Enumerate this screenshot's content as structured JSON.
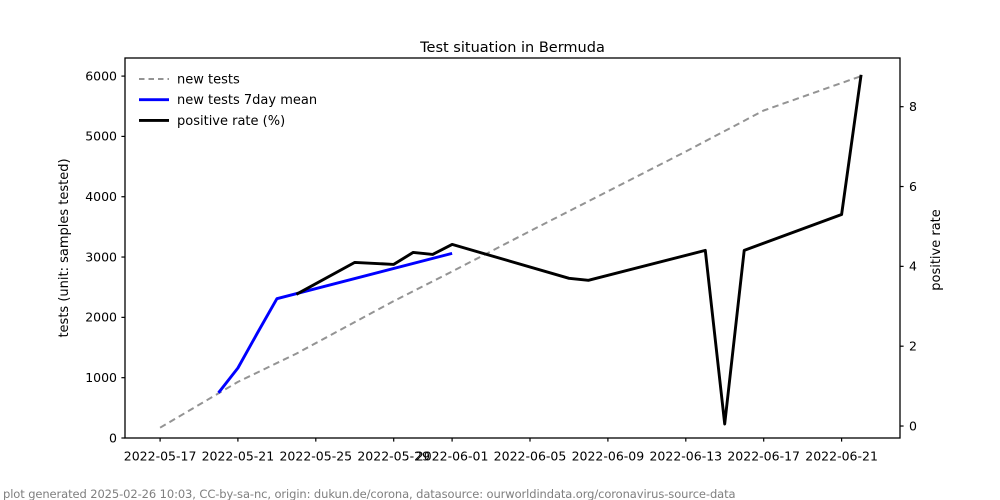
{
  "title": "Test situation in Bermuda",
  "footer": "plot generated 2025-02-26 10:03, CC-by-sa-nc, origin: dukun.de/corona, datasource: ourworldindata.org/coronavirus-source-data",
  "axes": {
    "x": {
      "start_date": "2022-05-17",
      "min_days": -1.8,
      "max_days": 38.0,
      "tick_dates": [
        "2022-05-17",
        "2022-05-21",
        "2022-05-25",
        "2022-05-29",
        "2022-06-01",
        "2022-06-05",
        "2022-06-09",
        "2022-06-13",
        "2022-06-17",
        "2022-06-21"
      ],
      "tick_labels": [
        "2022-05-17",
        "2022-05-21",
        "2022-05-25",
        "2022-05-29",
        "2022-06-01",
        "2022-06-05",
        "2022-06-09",
        "2022-06-13",
        "2022-06-17",
        "2022-06-21"
      ]
    },
    "y_left": {
      "label": "tests (unit: samples tested)",
      "min": 0,
      "max": 6300,
      "ticks": [
        0,
        1000,
        2000,
        3000,
        4000,
        5000,
        6000
      ]
    },
    "y_right": {
      "label": "positive rate",
      "min": -0.3,
      "max": 9.22,
      "ticks": [
        0,
        2,
        4,
        6,
        8
      ]
    }
  },
  "legend": {
    "position": "upper-left",
    "frame": false
  },
  "colors": {
    "gray_series": "#949494",
    "blue_series": "#0000ff",
    "black_series": "#000000",
    "spine": "#000000",
    "footer_text": "#7f7f7f"
  },
  "chart_data": {
    "type": "line",
    "title": "Test situation in Bermuda",
    "xlabel": "",
    "ylabel_left": "tests (unit: samples tested)",
    "ylabel_right": "positive rate",
    "x_range": [
      "2022-05-17",
      "2022-06-22"
    ],
    "ylim_left": [
      0,
      6300
    ],
    "ylim_right": [
      -0.3,
      9.22
    ],
    "grid": false,
    "series": [
      {
        "name": "new tests",
        "axis": "left",
        "style": "dashed",
        "color": "#949494",
        "width": 2,
        "points": [
          [
            "2022-05-17",
            170
          ],
          [
            "2022-05-21",
            930
          ],
          [
            "2022-05-24",
            1400
          ],
          [
            "2022-05-29",
            2270
          ],
          [
            "2022-06-01",
            2760
          ],
          [
            "2022-06-05",
            3430
          ],
          [
            "2022-06-09",
            4090
          ],
          [
            "2022-06-13",
            4750
          ],
          [
            "2022-06-17",
            5430
          ],
          [
            "2022-06-22",
            6000
          ]
        ]
      },
      {
        "name": "new tests 7day mean",
        "axis": "left",
        "style": "solid",
        "color": "#0000ff",
        "width": 2.9,
        "points": [
          [
            "2022-05-20",
            750
          ],
          [
            "2022-05-21",
            1160
          ],
          [
            "2022-05-22",
            1740
          ],
          [
            "2022-05-23",
            2310
          ],
          [
            "2022-06-01",
            3060
          ]
        ]
      },
      {
        "name": "positive rate (%)",
        "axis": "right",
        "style": "solid",
        "color": "#000000",
        "width": 2.9,
        "points": [
          [
            "2022-05-24",
            3.3
          ],
          [
            "2022-05-27",
            4.1
          ],
          [
            "2022-05-29",
            4.05
          ],
          [
            "2022-05-30",
            4.35
          ],
          [
            "2022-05-31",
            4.3
          ],
          [
            "2022-06-01",
            4.55
          ],
          [
            "2022-06-07",
            3.7
          ],
          [
            "2022-06-08",
            3.65
          ],
          [
            "2022-06-14",
            4.4
          ],
          [
            "2022-06-15",
            0.05
          ],
          [
            "2022-06-16",
            4.4
          ],
          [
            "2022-06-21",
            5.3
          ],
          [
            "2022-06-22",
            8.8
          ]
        ]
      }
    ]
  }
}
